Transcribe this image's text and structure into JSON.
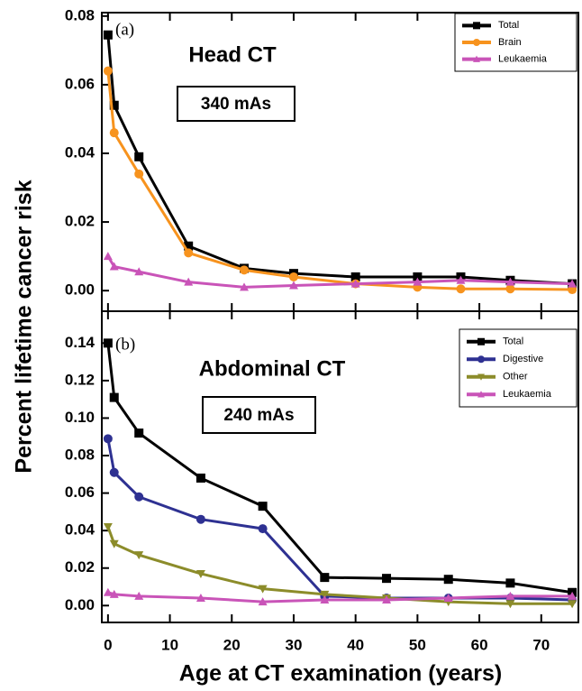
{
  "chart_data": [
    {
      "type": "line",
      "panel_label": "(a)",
      "title": "Head CT",
      "subtitle": "340 mAs",
      "ylabel": "Percent lifetime cancer risk",
      "x": [
        0,
        1,
        5,
        13,
        22,
        30,
        40,
        50,
        57,
        65,
        75
      ],
      "xlim": [
        -1,
        76
      ],
      "xticks": [
        0,
        10,
        20,
        30,
        40,
        50,
        60,
        70
      ],
      "ylim": [
        -0.006,
        0.081
      ],
      "yticks": [
        {
          "value": 0,
          "label": "0.00"
        },
        0.02,
        0.04,
        0.06,
        0.08
      ],
      "legend": "upper right",
      "series": [
        {
          "name": "Total",
          "color": "#000000",
          "marker": "square",
          "values": [
            0.0745,
            0.054,
            0.039,
            0.013,
            0.0065,
            0.005,
            0.004,
            0.004,
            0.004,
            0.003,
            0.002
          ]
        },
        {
          "name": "Brain",
          "color": "#f7931e",
          "marker": "circle",
          "values": [
            0.064,
            0.046,
            0.034,
            0.011,
            0.006,
            0.004,
            0.002,
            0.001,
            0.0005,
            0.0005,
            0.0003
          ]
        },
        {
          "name": "Leukaemia",
          "color": "#c954b8",
          "marker": "triangle-up",
          "values": [
            0.01,
            0.007,
            0.0055,
            0.0025,
            0.001,
            0.0015,
            0.002,
            0.0025,
            0.003,
            0.0025,
            0.002
          ]
        }
      ]
    },
    {
      "type": "line",
      "panel_label": "(b)",
      "title": "Abdominal CT",
      "subtitle": "240 mAs",
      "xlabel": "Age at CT examination (years)",
      "x": [
        0,
        1,
        5,
        15,
        25,
        35,
        45,
        55,
        65,
        75
      ],
      "xlim": [
        -1,
        76
      ],
      "xticks": [
        0,
        10,
        20,
        30,
        40,
        50,
        60,
        70
      ],
      "ylim": [
        -0.009,
        0.157
      ],
      "yticks": [
        {
          "value": 0,
          "label": "0.00"
        },
        0.02,
        0.04,
        0.06,
        0.08,
        {
          "value": 0.1,
          "label": "0.10"
        },
        0.12,
        0.14
      ],
      "legend": "upper right",
      "series": [
        {
          "name": "Total",
          "color": "#000000",
          "marker": "square",
          "values": [
            0.14,
            0.111,
            0.092,
            0.068,
            0.053,
            0.015,
            0.0145,
            0.014,
            0.012,
            0.007
          ]
        },
        {
          "name": "Digestive",
          "color": "#2e3192",
          "marker": "circle",
          "values": [
            0.089,
            0.071,
            0.058,
            0.046,
            0.041,
            0.005,
            0.004,
            0.004,
            0.004,
            0.003
          ]
        },
        {
          "name": "Other",
          "color": "#8c8c2a",
          "marker": "triangle-down",
          "values": [
            0.042,
            0.033,
            0.027,
            0.017,
            0.009,
            0.006,
            0.004,
            0.002,
            0.001,
            0.001
          ]
        },
        {
          "name": "Leukaemia",
          "color": "#c954b8",
          "marker": "triangle-up",
          "values": [
            0.007,
            0.006,
            0.005,
            0.004,
            0.002,
            0.003,
            0.003,
            0.004,
            0.005,
            0.005
          ]
        }
      ]
    }
  ]
}
